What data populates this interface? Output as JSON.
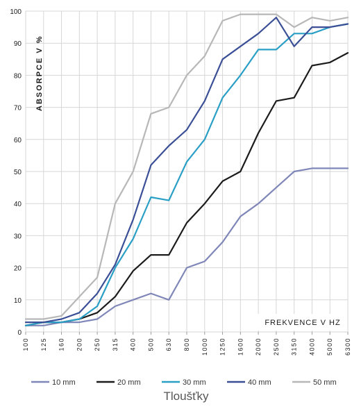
{
  "chart_data": {
    "type": "line",
    "ylabel": "ABSORPCE V  %",
    "xlabel": "FREKVENCE V HZ",
    "legend_title": "Tloušťky",
    "legend_position": "bottom",
    "grid": true,
    "ylim": [
      0,
      100
    ],
    "yticks": [
      0,
      10,
      20,
      30,
      40,
      50,
      60,
      70,
      80,
      90,
      100
    ],
    "categories": [
      "100",
      "125",
      "160",
      "200",
      "250",
      "315",
      "400",
      "500",
      "630",
      "800",
      "1000",
      "1250",
      "1600",
      "2000",
      "2500",
      "3150",
      "4000",
      "5000",
      "6300"
    ],
    "series": [
      {
        "name": "10 mm",
        "color": "#7f86b8",
        "values": [
          2,
          2,
          3,
          3,
          4,
          8,
          10,
          12,
          10,
          20,
          22,
          28,
          36,
          40,
          45,
          50,
          51,
          51,
          51
        ]
      },
      {
        "name": "20 mm",
        "color": "#1b1b1b",
        "values": [
          2,
          3,
          3,
          4,
          6,
          11,
          19,
          24,
          24,
          34,
          40,
          47,
          50,
          62,
          72,
          73,
          83,
          84,
          87
        ]
      },
      {
        "name": "30 mm",
        "color": "#2a9fc6",
        "values": [
          2,
          3,
          3,
          4,
          8,
          20,
          29,
          42,
          41,
          53,
          60,
          73,
          80,
          88,
          88,
          93,
          93,
          95,
          96
        ]
      },
      {
        "name": "40 mm",
        "color": "#3a4f96",
        "values": [
          3,
          3,
          4,
          6,
          12,
          21,
          35,
          52,
          58,
          63,
          72,
          85,
          89,
          93,
          98,
          89,
          95,
          95,
          96
        ]
      },
      {
        "name": "50 mm",
        "color": "#b7b7b7",
        "values": [
          4,
          4,
          5,
          11,
          17,
          40,
          50,
          68,
          70,
          80,
          86,
          97,
          99,
          99,
          99,
          95,
          98,
          97,
          98
        ]
      }
    ]
  }
}
